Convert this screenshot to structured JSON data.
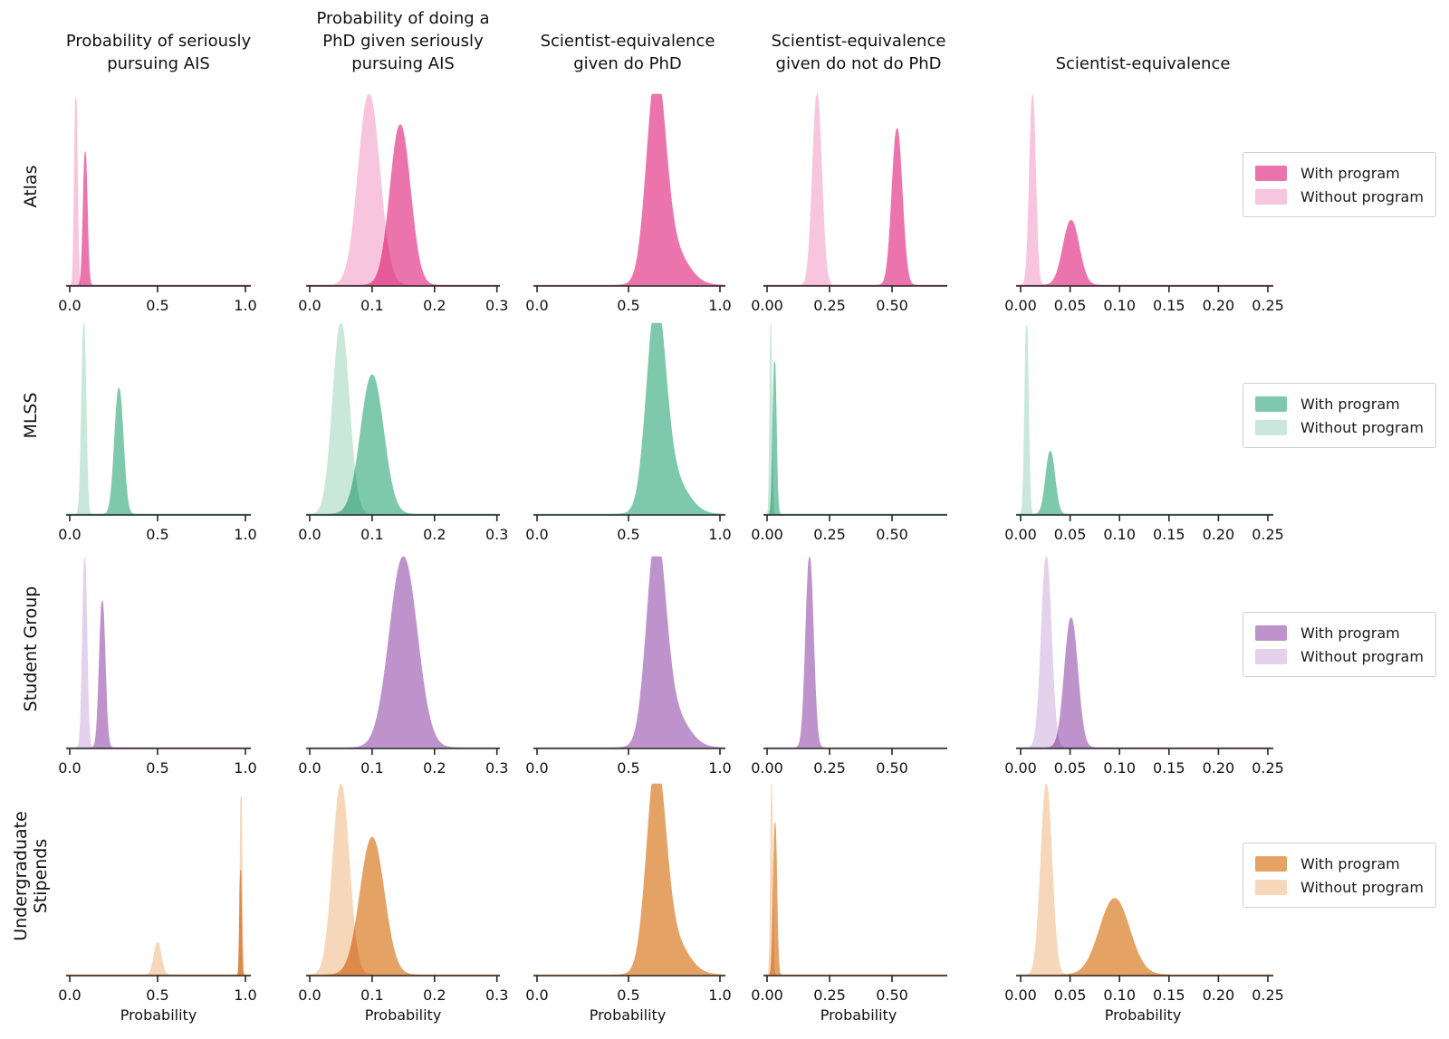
{
  "chart_data": {
    "type": "area",
    "subtype": "kde-density-grid",
    "description": "4x5 grid of kernel density estimates comparing outcome distributions with vs without each program; y-axis is unlabeled density, x-axis is probability.",
    "xlabel": "Probability",
    "legend": {
      "with_label": "With program",
      "without_label": "Without program",
      "position": "right of each row"
    },
    "columns": [
      {
        "title": "Probability of seriously\npursuing AIS",
        "xlim": [
          0,
          1.03
        ],
        "ticks": [
          {
            "v": 0,
            "label": "0.0"
          },
          {
            "v": 0.5,
            "label": "0.5"
          },
          {
            "v": 1.0,
            "label": "1.0"
          }
        ]
      },
      {
        "title": "Probability of doing a\nPhD given seriously\npursuing AIS",
        "xlim": [
          0,
          0.3
        ],
        "ticks": [
          {
            "v": 0,
            "label": "0.0"
          },
          {
            "v": 0.1,
            "label": "0.1"
          },
          {
            "v": 0.2,
            "label": "0.2"
          },
          {
            "v": 0.3,
            "label": "0.3"
          }
        ]
      },
      {
        "title": "Scientist-equivalence\ngiven do PhD",
        "xlim": [
          0,
          1.03
        ],
        "ticks": [
          {
            "v": 0,
            "label": "0.0"
          },
          {
            "v": 0.5,
            "label": "0.5"
          },
          {
            "v": 1.0,
            "label": "1.0"
          }
        ]
      },
      {
        "title": "Scientist-equivalence\ngiven do not do PhD",
        "xlim": [
          0,
          0.72
        ],
        "ticks": [
          {
            "v": 0,
            "label": "0.00"
          },
          {
            "v": 0.25,
            "label": "0.25"
          },
          {
            "v": 0.5,
            "label": "0.50"
          }
        ]
      },
      {
        "title": "Scientist-equivalence",
        "xlim": [
          0,
          0.255
        ],
        "ticks": [
          {
            "v": 0,
            "label": "0.00"
          },
          {
            "v": 0.05,
            "label": "0.05"
          },
          {
            "v": 0.1,
            "label": "0.10"
          },
          {
            "v": 0.15,
            "label": "0.15"
          },
          {
            "v": 0.2,
            "label": "0.20"
          },
          {
            "v": 0.25,
            "label": "0.25"
          }
        ]
      }
    ],
    "rows": [
      {
        "label": "Atlas",
        "color_with": "#ec74ad",
        "color_without": "#f8c5de"
      },
      {
        "label": "MLSS",
        "color_with": "#7ec9ad",
        "color_without": "#c9e8db"
      },
      {
        "label": "Student Group",
        "color_with": "#be93cc",
        "color_without": "#e4d1ec"
      },
      {
        "label": "Undergraduate\nStipends",
        "color_with": "#e5a265",
        "color_without": "#f6d7ba"
      }
    ],
    "panels": [
      [
        {
          "without": [
            {
              "mu": 0.035,
              "sigma": 0.008,
              "height": 1.0
            }
          ],
          "with": [
            {
              "mu": 0.088,
              "sigma": 0.011,
              "height": 0.7
            }
          ]
        },
        {
          "without": [
            {
              "mu": 0.095,
              "sigma": 0.017,
              "height": 1.0
            }
          ],
          "with": [
            {
              "mu": 0.145,
              "sigma": 0.016,
              "height": 0.84
            }
          ]
        },
        {
          "without": null,
          "with": [
            {
              "mu": 0.65,
              "sigma": 0.05,
              "height": 1.0
            },
            {
              "mu": 0.73,
              "sigma": 0.085,
              "height": 0.2
            }
          ]
        },
        {
          "without": [
            {
              "mu": 0.2,
              "sigma": 0.018,
              "height": 1.0
            }
          ],
          "with": [
            {
              "mu": 0.52,
              "sigma": 0.02,
              "height": 0.82
            }
          ]
        },
        {
          "without": [
            {
              "mu": 0.012,
              "sigma": 0.003,
              "height": 1.0
            }
          ],
          "with": [
            {
              "mu": 0.051,
              "sigma": 0.008,
              "height": 0.34
            }
          ]
        }
      ],
      [
        {
          "without": [
            {
              "mu": 0.08,
              "sigma": 0.012,
              "height": 1.0
            }
          ],
          "with": [
            {
              "mu": 0.28,
              "sigma": 0.024,
              "height": 0.66
            }
          ]
        },
        {
          "without": [
            {
              "mu": 0.05,
              "sigma": 0.013,
              "height": 1.0
            }
          ],
          "with": [
            {
              "mu": 0.1,
              "sigma": 0.018,
              "height": 0.73
            }
          ]
        },
        {
          "without": null,
          "with": [
            {
              "mu": 0.65,
              "sigma": 0.05,
              "height": 1.0
            },
            {
              "mu": 0.73,
              "sigma": 0.085,
              "height": 0.2
            }
          ]
        },
        {
          "without": [
            {
              "mu": 0.015,
              "sigma": 0.004,
              "height": 1.0
            }
          ],
          "with": [
            {
              "mu": 0.03,
              "sigma": 0.0065,
              "height": 0.81
            }
          ]
        },
        {
          "without": [
            {
              "mu": 0.006,
              "sigma": 0.0018,
              "height": 1.0
            }
          ],
          "with": [
            {
              "mu": 0.03,
              "sigma": 0.0045,
              "height": 0.33
            }
          ]
        }
      ],
      [
        {
          "without": [
            {
              "mu": 0.085,
              "sigma": 0.012,
              "height": 1.0
            }
          ],
          "with": [
            {
              "mu": 0.185,
              "sigma": 0.016,
              "height": 0.77
            }
          ]
        },
        {
          "without": null,
          "with": [
            {
              "mu": 0.15,
              "sigma": 0.022,
              "height": 1.0
            }
          ]
        },
        {
          "without": null,
          "with": [
            {
              "mu": 0.65,
              "sigma": 0.05,
              "height": 1.0
            },
            {
              "mu": 0.73,
              "sigma": 0.085,
              "height": 0.2
            }
          ]
        },
        {
          "without": null,
          "with": [
            {
              "mu": 0.17,
              "sigma": 0.015,
              "height": 1.0
            }
          ]
        },
        {
          "without": [
            {
              "mu": 0.026,
              "sigma": 0.005,
              "height": 1.0
            }
          ],
          "with": [
            {
              "mu": 0.051,
              "sigma": 0.0065,
              "height": 0.68
            }
          ]
        }
      ],
      [
        {
          "without": [
            {
              "mu": 0.5,
              "sigma": 0.02,
              "height": 0.17
            },
            {
              "mu": 0.975,
              "sigma": 0.005,
              "height": 1.0
            }
          ],
          "with": [
            {
              "mu": 0.972,
              "sigma": 0.005,
              "height": 0.56
            }
          ]
        },
        {
          "without": [
            {
              "mu": 0.05,
              "sigma": 0.013,
              "height": 1.0
            }
          ],
          "with": [
            {
              "mu": 0.1,
              "sigma": 0.019,
              "height": 0.72
            }
          ]
        },
        {
          "without": null,
          "with": [
            {
              "mu": 0.65,
              "sigma": 0.05,
              "height": 1.0
            },
            {
              "mu": 0.73,
              "sigma": 0.085,
              "height": 0.2
            }
          ]
        },
        {
          "without": [
            {
              "mu": 0.018,
              "sigma": 0.004,
              "height": 1.0
            }
          ],
          "with": [
            {
              "mu": 0.032,
              "sigma": 0.0065,
              "height": 0.8
            }
          ]
        },
        {
          "without": [
            {
              "mu": 0.026,
              "sigma": 0.0055,
              "height": 1.0
            }
          ],
          "with": [
            {
              "mu": 0.095,
              "sigma": 0.015,
              "height": 0.4
            }
          ]
        }
      ]
    ],
    "style": {
      "axis_color": "#262626",
      "text_color": "#111111",
      "y_axis": "hidden (density)",
      "grid": "off"
    }
  }
}
